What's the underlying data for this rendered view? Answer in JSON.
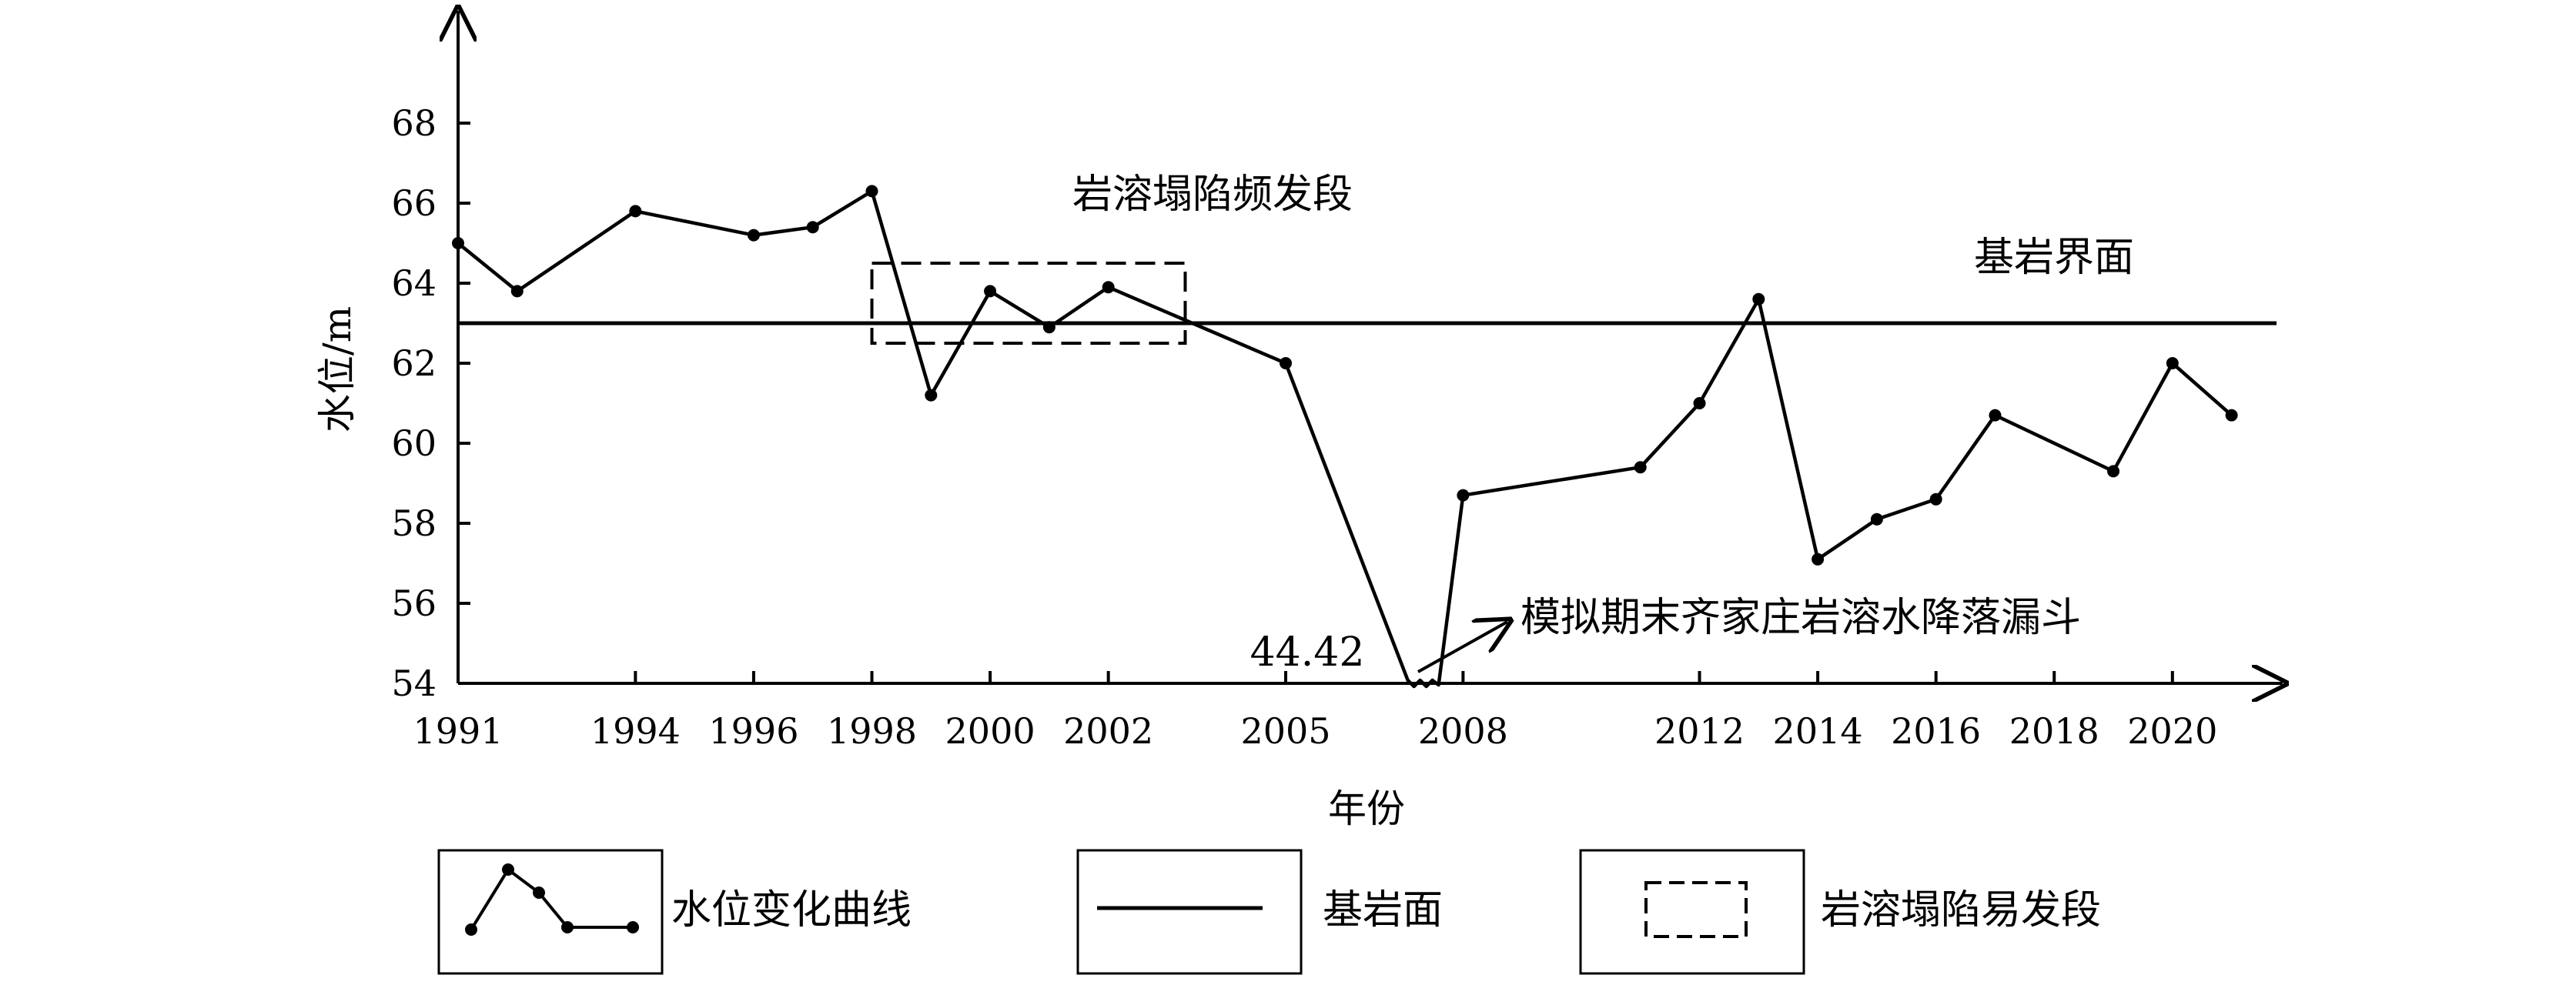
{
  "chart_data": {
    "type": "line",
    "xlabel": "年份",
    "ylabel": "水位/m",
    "xlim": [
      1991,
      2021.5
    ],
    "ylim": [
      54,
      69.5
    ],
    "x_ticks": [
      1991,
      1994,
      1996,
      1998,
      2000,
      2002,
      2005,
      2008,
      2012,
      2014,
      2016,
      2018,
      2020
    ],
    "y_ticks": [
      54,
      56,
      58,
      60,
      62,
      64,
      66,
      68
    ],
    "grid": false,
    "series": [
      {
        "name": "水位变化曲线",
        "x": [
          1991,
          1992,
          1994,
          1996,
          1997,
          1998,
          1999,
          2000,
          2001,
          2002,
          2005,
          2007.3,
          2008,
          2011,
          2012,
          2013,
          2014,
          2015,
          2016,
          2017,
          2019,
          2020,
          2021
        ],
        "y": [
          65.0,
          63.8,
          65.8,
          65.2,
          65.4,
          66.3,
          61.2,
          63.8,
          62.9,
          63.9,
          62.0,
          44.42,
          58.7,
          59.4,
          61.0,
          63.6,
          57.1,
          58.1,
          58.6,
          60.7,
          59.3,
          62.0,
          60.7
        ],
        "marker": "dot"
      }
    ],
    "reference_line": {
      "name": "基岩面",
      "y": 63,
      "label": "基岩界面"
    },
    "highlight_box": {
      "name": "岩溶塌陷易发段",
      "label": "岩溶塌陷频发段",
      "x_range": [
        1998,
        2003.3
      ],
      "y_range": [
        62.5,
        64.5
      ]
    },
    "annotations": [
      {
        "text": "44.42",
        "x": 2007.3
      },
      {
        "text": "模拟期末齐家庄岩溶水降落漏斗"
      }
    ],
    "legend": {
      "placement": "bottom",
      "items": [
        {
          "label": "水位变化曲线",
          "kind": "line-with-markers"
        },
        {
          "label": "基岩面",
          "kind": "solid-line"
        },
        {
          "label": "岩溶塌陷易发段",
          "kind": "dashed-box"
        }
      ]
    }
  }
}
